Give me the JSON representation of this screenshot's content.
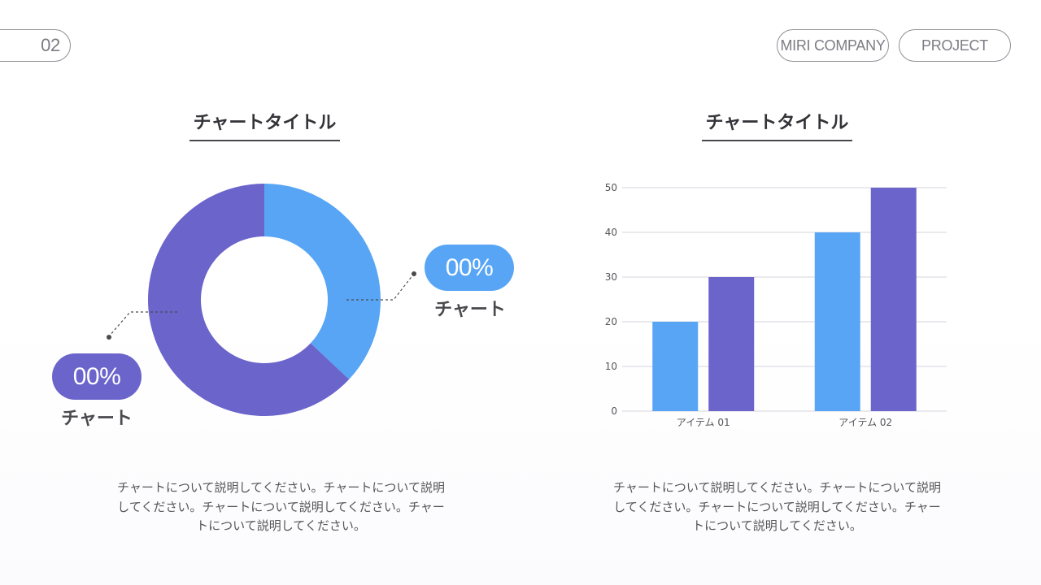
{
  "header": {
    "page_number": "02",
    "company": "MIRI COMPANY",
    "project": "PROJECT"
  },
  "colors": {
    "blue": "#58a5f5",
    "purple": "#6a64cb",
    "outline": "#8f8f96"
  },
  "left_chart": {
    "title": "チャートタイトル",
    "right_badge": {
      "value": "00%",
      "caption": "チャート"
    },
    "left_badge": {
      "value": "00%",
      "caption": "チャート"
    },
    "description": "チャートについて説明してください。チャートについて説明してください。チャートについて説明してください。チャートについて説明してください。"
  },
  "right_chart": {
    "title": "チャートタイトル",
    "description": "チャートについて説明してください。チャートについて説明してください。チャートについて説明してください。チャートについて説明してください。"
  },
  "chart_data": [
    {
      "type": "pie",
      "title": "チャートタイトル",
      "donut": true,
      "values": [
        37,
        63
      ],
      "labels": [
        "00%",
        "00%"
      ],
      "colors": [
        "#58a5f5",
        "#6a64cb"
      ]
    },
    {
      "type": "bar",
      "title": "チャートタイトル",
      "categories": [
        "アイテム 01",
        "アイテム 02"
      ],
      "series": [
        {
          "values": [
            20,
            40
          ],
          "color": "#58a5f5"
        },
        {
          "values": [
            30,
            50
          ],
          "color": "#6a64cb"
        }
      ],
      "ylim": [
        0,
        50
      ],
      "yticks": [
        0,
        10,
        20,
        30,
        40,
        50
      ],
      "grid": true,
      "legend": "none"
    }
  ]
}
